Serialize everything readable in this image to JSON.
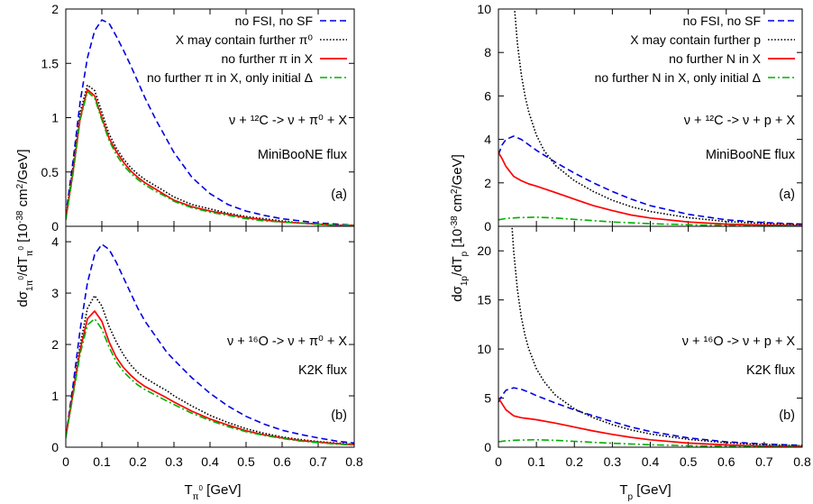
{
  "colors": {
    "no_fsi_no_sf": "#0000e0",
    "x_may_contain": "#000000",
    "no_further": "#ff0000",
    "only_initial_delta": "#00b000"
  },
  "chart_data": [
    {
      "id": "left-top",
      "type": "line",
      "ylim": [
        0,
        2
      ],
      "yticks": [
        "0",
        "0.5",
        "1",
        "1.5",
        "2"
      ],
      "ytick_values": [
        0,
        0.5,
        1,
        1.5,
        2
      ],
      "xlim": [
        0,
        0.8
      ],
      "legend": [
        "no FSI, no SF",
        "X may contain further π⁰",
        "no further π in X",
        "no further π in X, only initial Δ"
      ],
      "reaction": "ν + ¹²C -> ν + π⁰ + X",
      "flux": "MiniBooNE flux",
      "panel": "(a)",
      "x": [
        0,
        0.02,
        0.04,
        0.06,
        0.08,
        0.1,
        0.12,
        0.14,
        0.16,
        0.18,
        0.2,
        0.22,
        0.25,
        0.28,
        0.3,
        0.35,
        0.4,
        0.45,
        0.5,
        0.55,
        0.6,
        0.65,
        0.7,
        0.75,
        0.8
      ],
      "series": [
        {
          "values": [
            0.1,
            0.6,
            1.15,
            1.55,
            1.8,
            1.9,
            1.87,
            1.75,
            1.62,
            1.48,
            1.33,
            1.18,
            0.98,
            0.8,
            0.68,
            0.45,
            0.3,
            0.2,
            0.14,
            0.1,
            0.07,
            0.05,
            0.03,
            0.02,
            0.01
          ]
        },
        {
          "values": [
            0.08,
            0.55,
            1.05,
            1.3,
            1.25,
            1.05,
            0.85,
            0.72,
            0.62,
            0.54,
            0.48,
            0.43,
            0.37,
            0.31,
            0.27,
            0.2,
            0.16,
            0.12,
            0.09,
            0.07,
            0.05,
            0.03,
            0.02,
            0.01,
            0.01
          ]
        },
        {
          "values": [
            0.07,
            0.5,
            1.0,
            1.26,
            1.2,
            1.0,
            0.81,
            0.69,
            0.59,
            0.51,
            0.45,
            0.4,
            0.34,
            0.28,
            0.24,
            0.18,
            0.14,
            0.11,
            0.08,
            0.06,
            0.04,
            0.03,
            0.02,
            0.01,
            0.01
          ]
        },
        {
          "values": [
            0.06,
            0.48,
            0.98,
            1.24,
            1.18,
            0.98,
            0.79,
            0.66,
            0.56,
            0.49,
            0.43,
            0.38,
            0.32,
            0.27,
            0.23,
            0.17,
            0.13,
            0.1,
            0.07,
            0.05,
            0.04,
            0.03,
            0.02,
            0.01,
            0.01
          ]
        }
      ]
    },
    {
      "id": "left-bottom",
      "type": "line",
      "ylim": [
        0,
        4.3
      ],
      "yticks": [
        "0",
        "1",
        "2",
        "3",
        "4"
      ],
      "ytick_values": [
        0,
        1,
        2,
        3,
        4
      ],
      "xlim": [
        0,
        0.8
      ],
      "xticks": [
        "0",
        "0.1",
        "0.2",
        "0.3",
        "0.4",
        "0.5",
        "0.6",
        "0.7",
        "0.8"
      ],
      "xtick_values": [
        0,
        0.1,
        0.2,
        0.3,
        0.4,
        0.5,
        0.6,
        0.7,
        0.8
      ],
      "reaction": "ν + ¹⁶O -> ν + π⁰ + X",
      "flux": "K2K flux",
      "panel": "(b)",
      "x": [
        0,
        0.02,
        0.04,
        0.06,
        0.08,
        0.1,
        0.12,
        0.14,
        0.16,
        0.18,
        0.2,
        0.22,
        0.25,
        0.28,
        0.3,
        0.35,
        0.4,
        0.45,
        0.5,
        0.55,
        0.6,
        0.65,
        0.7,
        0.75,
        0.8
      ],
      "series": [
        {
          "values": [
            0.2,
            1.2,
            2.3,
            3.2,
            3.75,
            3.95,
            3.85,
            3.6,
            3.3,
            3.0,
            2.7,
            2.45,
            2.15,
            1.85,
            1.7,
            1.35,
            1.05,
            0.8,
            0.6,
            0.45,
            0.33,
            0.25,
            0.18,
            0.12,
            0.08
          ]
        },
        {
          "values": [
            0.2,
            1.1,
            2.0,
            2.7,
            2.95,
            2.75,
            2.35,
            2.05,
            1.8,
            1.6,
            1.45,
            1.35,
            1.22,
            1.1,
            1.0,
            0.8,
            0.62,
            0.48,
            0.36,
            0.27,
            0.2,
            0.15,
            0.11,
            0.08,
            0.06
          ]
        },
        {
          "values": [
            0.2,
            1.05,
            1.9,
            2.5,
            2.65,
            2.45,
            2.05,
            1.75,
            1.55,
            1.4,
            1.28,
            1.18,
            1.07,
            0.96,
            0.88,
            0.7,
            0.55,
            0.43,
            0.32,
            0.24,
            0.18,
            0.13,
            0.1,
            0.07,
            0.05
          ]
        },
        {
          "values": [
            0.18,
            1.0,
            1.82,
            2.38,
            2.5,
            2.3,
            1.95,
            1.66,
            1.47,
            1.33,
            1.21,
            1.12,
            1.01,
            0.9,
            0.83,
            0.66,
            0.52,
            0.4,
            0.3,
            0.23,
            0.17,
            0.12,
            0.09,
            0.06,
            0.04
          ]
        }
      ]
    },
    {
      "id": "right-top",
      "type": "line",
      "ylim": [
        0,
        10
      ],
      "yticks": [
        "0",
        "2",
        "4",
        "6",
        "8",
        "10"
      ],
      "ytick_values": [
        0,
        2,
        4,
        6,
        8,
        10
      ],
      "xlim": [
        0,
        0.8
      ],
      "legend": [
        "no FSI, no SF",
        "X may contain further p",
        "no further N in X",
        "no further N in X, only initial Δ"
      ],
      "reaction": "ν + ¹²C -> ν + p + X",
      "flux": "MiniBooNE flux",
      "panel": "(a)",
      "series": [
        {
          "x": [
            0,
            0.01,
            0.02,
            0.04,
            0.06,
            0.08,
            0.1,
            0.15,
            0.2,
            0.25,
            0.3,
            0.35,
            0.4,
            0.5,
            0.6,
            0.7,
            0.8
          ],
          "values": [
            3.3,
            3.75,
            4.0,
            4.15,
            4.0,
            3.75,
            3.5,
            2.95,
            2.45,
            2.0,
            1.6,
            1.25,
            0.95,
            0.55,
            0.3,
            0.17,
            0.1
          ]
        },
        {
          "x": [
            0.04,
            0.05,
            0.06,
            0.07,
            0.08,
            0.1,
            0.12,
            0.15,
            0.2,
            0.25,
            0.3,
            0.35,
            0.4,
            0.5,
            0.6,
            0.7,
            0.8
          ],
          "values": [
            10.5,
            8.4,
            7.0,
            6.0,
            5.25,
            4.2,
            3.5,
            2.8,
            2.1,
            1.6,
            1.2,
            0.9,
            0.68,
            0.4,
            0.22,
            0.13,
            0.08
          ]
        },
        {
          "x": [
            0,
            0.01,
            0.02,
            0.04,
            0.06,
            0.08,
            0.1,
            0.15,
            0.2,
            0.25,
            0.3,
            0.35,
            0.4,
            0.5,
            0.6,
            0.7,
            0.8
          ],
          "values": [
            3.4,
            3.1,
            2.75,
            2.3,
            2.1,
            1.95,
            1.85,
            1.55,
            1.25,
            0.95,
            0.72,
            0.52,
            0.38,
            0.2,
            0.1,
            0.06,
            0.03
          ]
        },
        {
          "x": [
            0,
            0.02,
            0.05,
            0.1,
            0.15,
            0.2,
            0.25,
            0.3,
            0.4,
            0.5,
            0.6,
            0.7,
            0.8
          ],
          "values": [
            0.3,
            0.36,
            0.4,
            0.42,
            0.38,
            0.32,
            0.26,
            0.2,
            0.12,
            0.07,
            0.04,
            0.02,
            0.01
          ]
        }
      ]
    },
    {
      "id": "right-bottom",
      "type": "line",
      "ylim": [
        0,
        22.5
      ],
      "yticks": [
        "0",
        "5",
        "10",
        "15",
        "20"
      ],
      "ytick_values": [
        0,
        5,
        10,
        15,
        20
      ],
      "xlim": [
        0,
        0.8
      ],
      "xticks": [
        "0",
        "0.1",
        "0.2",
        "0.3",
        "0.4",
        "0.5",
        "0.6",
        "0.7",
        "0.8"
      ],
      "xtick_values": [
        0,
        0.1,
        0.2,
        0.3,
        0.4,
        0.5,
        0.6,
        0.7,
        0.8
      ],
      "reaction": "ν + ¹⁶O -> ν + p + X",
      "flux": "K2K flux",
      "panel": "(b)",
      "series": [
        {
          "x": [
            0,
            0.01,
            0.02,
            0.04,
            0.06,
            0.08,
            0.1,
            0.15,
            0.2,
            0.25,
            0.3,
            0.35,
            0.4,
            0.5,
            0.6,
            0.7,
            0.8
          ],
          "values": [
            4.6,
            5.3,
            5.8,
            6.05,
            5.9,
            5.6,
            5.25,
            4.5,
            3.8,
            3.2,
            2.6,
            2.05,
            1.6,
            0.95,
            0.55,
            0.32,
            0.18
          ]
        },
        {
          "x": [
            0.035,
            0.04,
            0.05,
            0.06,
            0.07,
            0.08,
            0.1,
            0.12,
            0.15,
            0.2,
            0.25,
            0.3,
            0.35,
            0.4,
            0.5,
            0.6,
            0.7,
            0.8
          ],
          "values": [
            23,
            20,
            16,
            13.3,
            11.4,
            10,
            8.0,
            6.7,
            5.3,
            3.9,
            3.0,
            2.3,
            1.75,
            1.35,
            0.8,
            0.45,
            0.26,
            0.15
          ]
        },
        {
          "x": [
            0,
            0.01,
            0.02,
            0.04,
            0.06,
            0.08,
            0.1,
            0.15,
            0.2,
            0.25,
            0.3,
            0.35,
            0.4,
            0.5,
            0.6,
            0.7,
            0.8
          ],
          "values": [
            5.0,
            4.4,
            3.8,
            3.2,
            3.0,
            2.9,
            2.8,
            2.45,
            2.05,
            1.65,
            1.3,
            1.0,
            0.75,
            0.42,
            0.23,
            0.12,
            0.07
          ]
        },
        {
          "x": [
            0,
            0.02,
            0.05,
            0.1,
            0.15,
            0.2,
            0.25,
            0.3,
            0.4,
            0.5,
            0.6,
            0.7,
            0.8
          ],
          "values": [
            0.55,
            0.65,
            0.72,
            0.76,
            0.7,
            0.6,
            0.5,
            0.4,
            0.25,
            0.15,
            0.09,
            0.05,
            0.03
          ]
        }
      ]
    }
  ],
  "axes": {
    "left_ylabel": "dσ1π0/dTπ0 [10-38 cm2/GeV]",
    "left_xlabel": "Tπ0 [GeV]",
    "right_ylabel": "dσ1p/dTp [10-38 cm2/GeV]",
    "right_xlabel": "Tp [GeV]"
  }
}
